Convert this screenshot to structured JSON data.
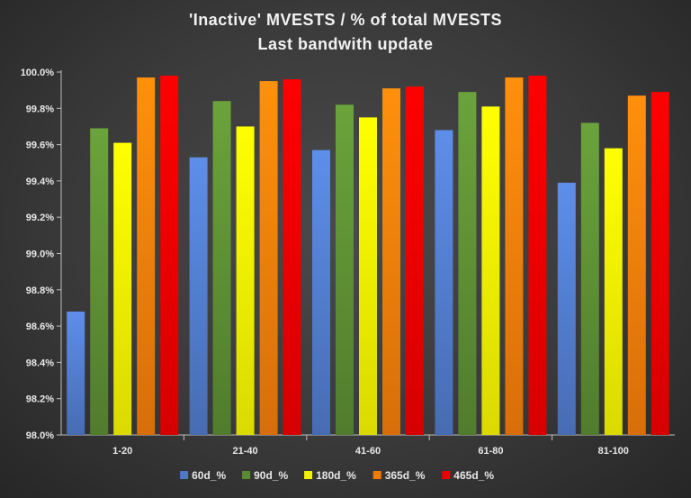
{
  "chart_data": {
    "type": "bar",
    "title": "'Inactive'  MVESTS  / % of total  MVESTS",
    "subtitle": "Last bandwith  update",
    "categories": [
      "1-20",
      "21-40",
      "41-60",
      "61-80",
      "81-100"
    ],
    "series": [
      {
        "name": "60d_%",
        "color": "#4f78c6",
        "values": [
          98.68,
          99.53,
          99.57,
          99.68,
          99.39
        ]
      },
      {
        "name": "90d_%",
        "color": "#5a8a32",
        "values": [
          99.69,
          99.84,
          99.82,
          99.89,
          99.72
        ]
      },
      {
        "name": "180d_%",
        "color": "#f2f200",
        "values": [
          99.61,
          99.7,
          99.75,
          99.81,
          99.58
        ]
      },
      {
        "name": "365d_%",
        "color": "#f07a0a",
        "values": [
          99.97,
          99.95,
          99.91,
          99.97,
          99.87
        ]
      },
      {
        "name": "465d_%",
        "color": "#ee0000",
        "values": [
          99.98,
          99.96,
          99.92,
          99.98,
          99.89
        ]
      }
    ],
    "ylim": [
      98.0,
      100.0
    ],
    "yticks": [
      "98.0%",
      "98.2%",
      "98.4%",
      "98.6%",
      "98.8%",
      "99.0%",
      "99.2%",
      "99.4%",
      "99.6%",
      "99.8%",
      "100.0%"
    ],
    "grid": false,
    "legend": "bottom"
  }
}
